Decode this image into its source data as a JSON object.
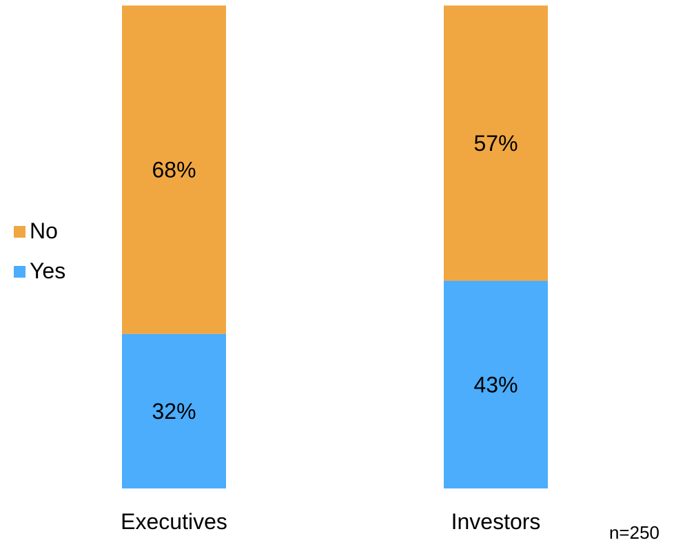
{
  "colors": {
    "no": "#f0a742",
    "yes": "#4badfc"
  },
  "legend": [
    {
      "label": "No",
      "series": "No"
    },
    {
      "label": "Yes",
      "series": "Yes"
    }
  ],
  "note": "n=250",
  "chart_data": {
    "type": "bar",
    "stacked": true,
    "categories": [
      "Executives",
      "Investors"
    ],
    "series": [
      {
        "name": "Yes",
        "values": [
          32,
          43
        ],
        "labels": [
          "32%",
          "43%"
        ]
      },
      {
        "name": "No",
        "values": [
          68,
          57
        ],
        "labels": [
          "68%",
          "57%"
        ]
      }
    ],
    "ylim": [
      0,
      100
    ],
    "grid": false,
    "legend_position": "left"
  }
}
